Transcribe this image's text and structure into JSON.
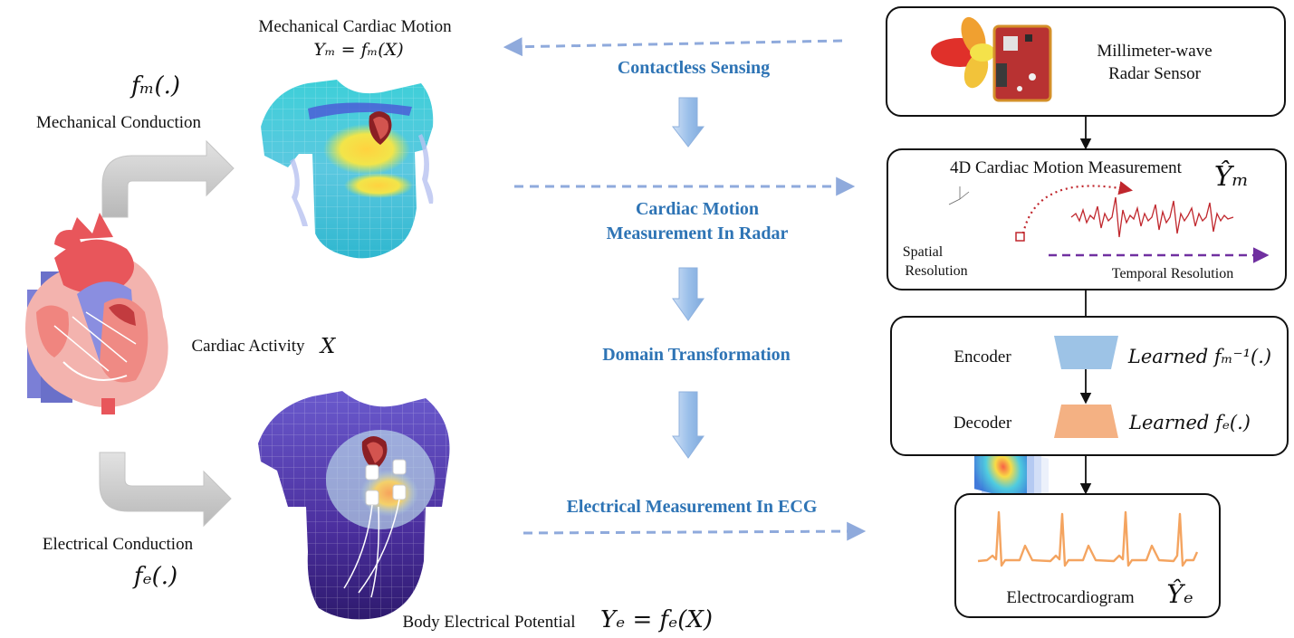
{
  "left": {
    "mech_motion_title": "Mechanical Cardiac Motion",
    "mech_motion_eq": "Yₘ = fₘ(X)",
    "fm_symbol": "fₘ(.)",
    "mech_conduction": "Mechanical Conduction",
    "cardiac_activity": "Cardiac Activity",
    "cardiac_activity_var": "X",
    "elec_conduction": "Electrical Conduction",
    "fe_symbol": "fₑ(.)",
    "body_potential": "Body Electrical Potential",
    "body_potential_eq": "Yₑ = fₑ(X)"
  },
  "middle": {
    "contactless": "Contactless Sensing",
    "cardiac_motion_line1": "Cardiac Motion",
    "cardiac_motion_line2": "Measurement In Radar",
    "domain_transformation": "Domain Transformation",
    "electrical_measurement": "Electrical Measurement In ECG"
  },
  "right": {
    "radar_line1": "Millimeter-wave",
    "radar_line2": "Radar Sensor",
    "measurement_title": "4D Cardiac Motion Measurement",
    "measurement_symbol": "Ŷₘ",
    "spatial_line1": "Spatial",
    "spatial_line2": "Resolution",
    "temporal": "Temporal Resolution",
    "encoder": "Encoder",
    "encoder_learned": "Learned fₘ⁻¹(.)",
    "decoder": "Decoder",
    "decoder_learned": "Learned fₑ(.)",
    "ecg": "Electrocardiogram",
    "ecg_symbol": "Ŷₑ"
  },
  "colors": {
    "text_blue": "#2e74b5",
    "dashed_arrow": "#8faadc",
    "encoder_fill": "#9dc3e6",
    "decoder_fill": "#f4b183",
    "ecg_wave": "#f4a460",
    "radar_wave": "#c0272d",
    "temporal_arrow": "#7030a0"
  }
}
